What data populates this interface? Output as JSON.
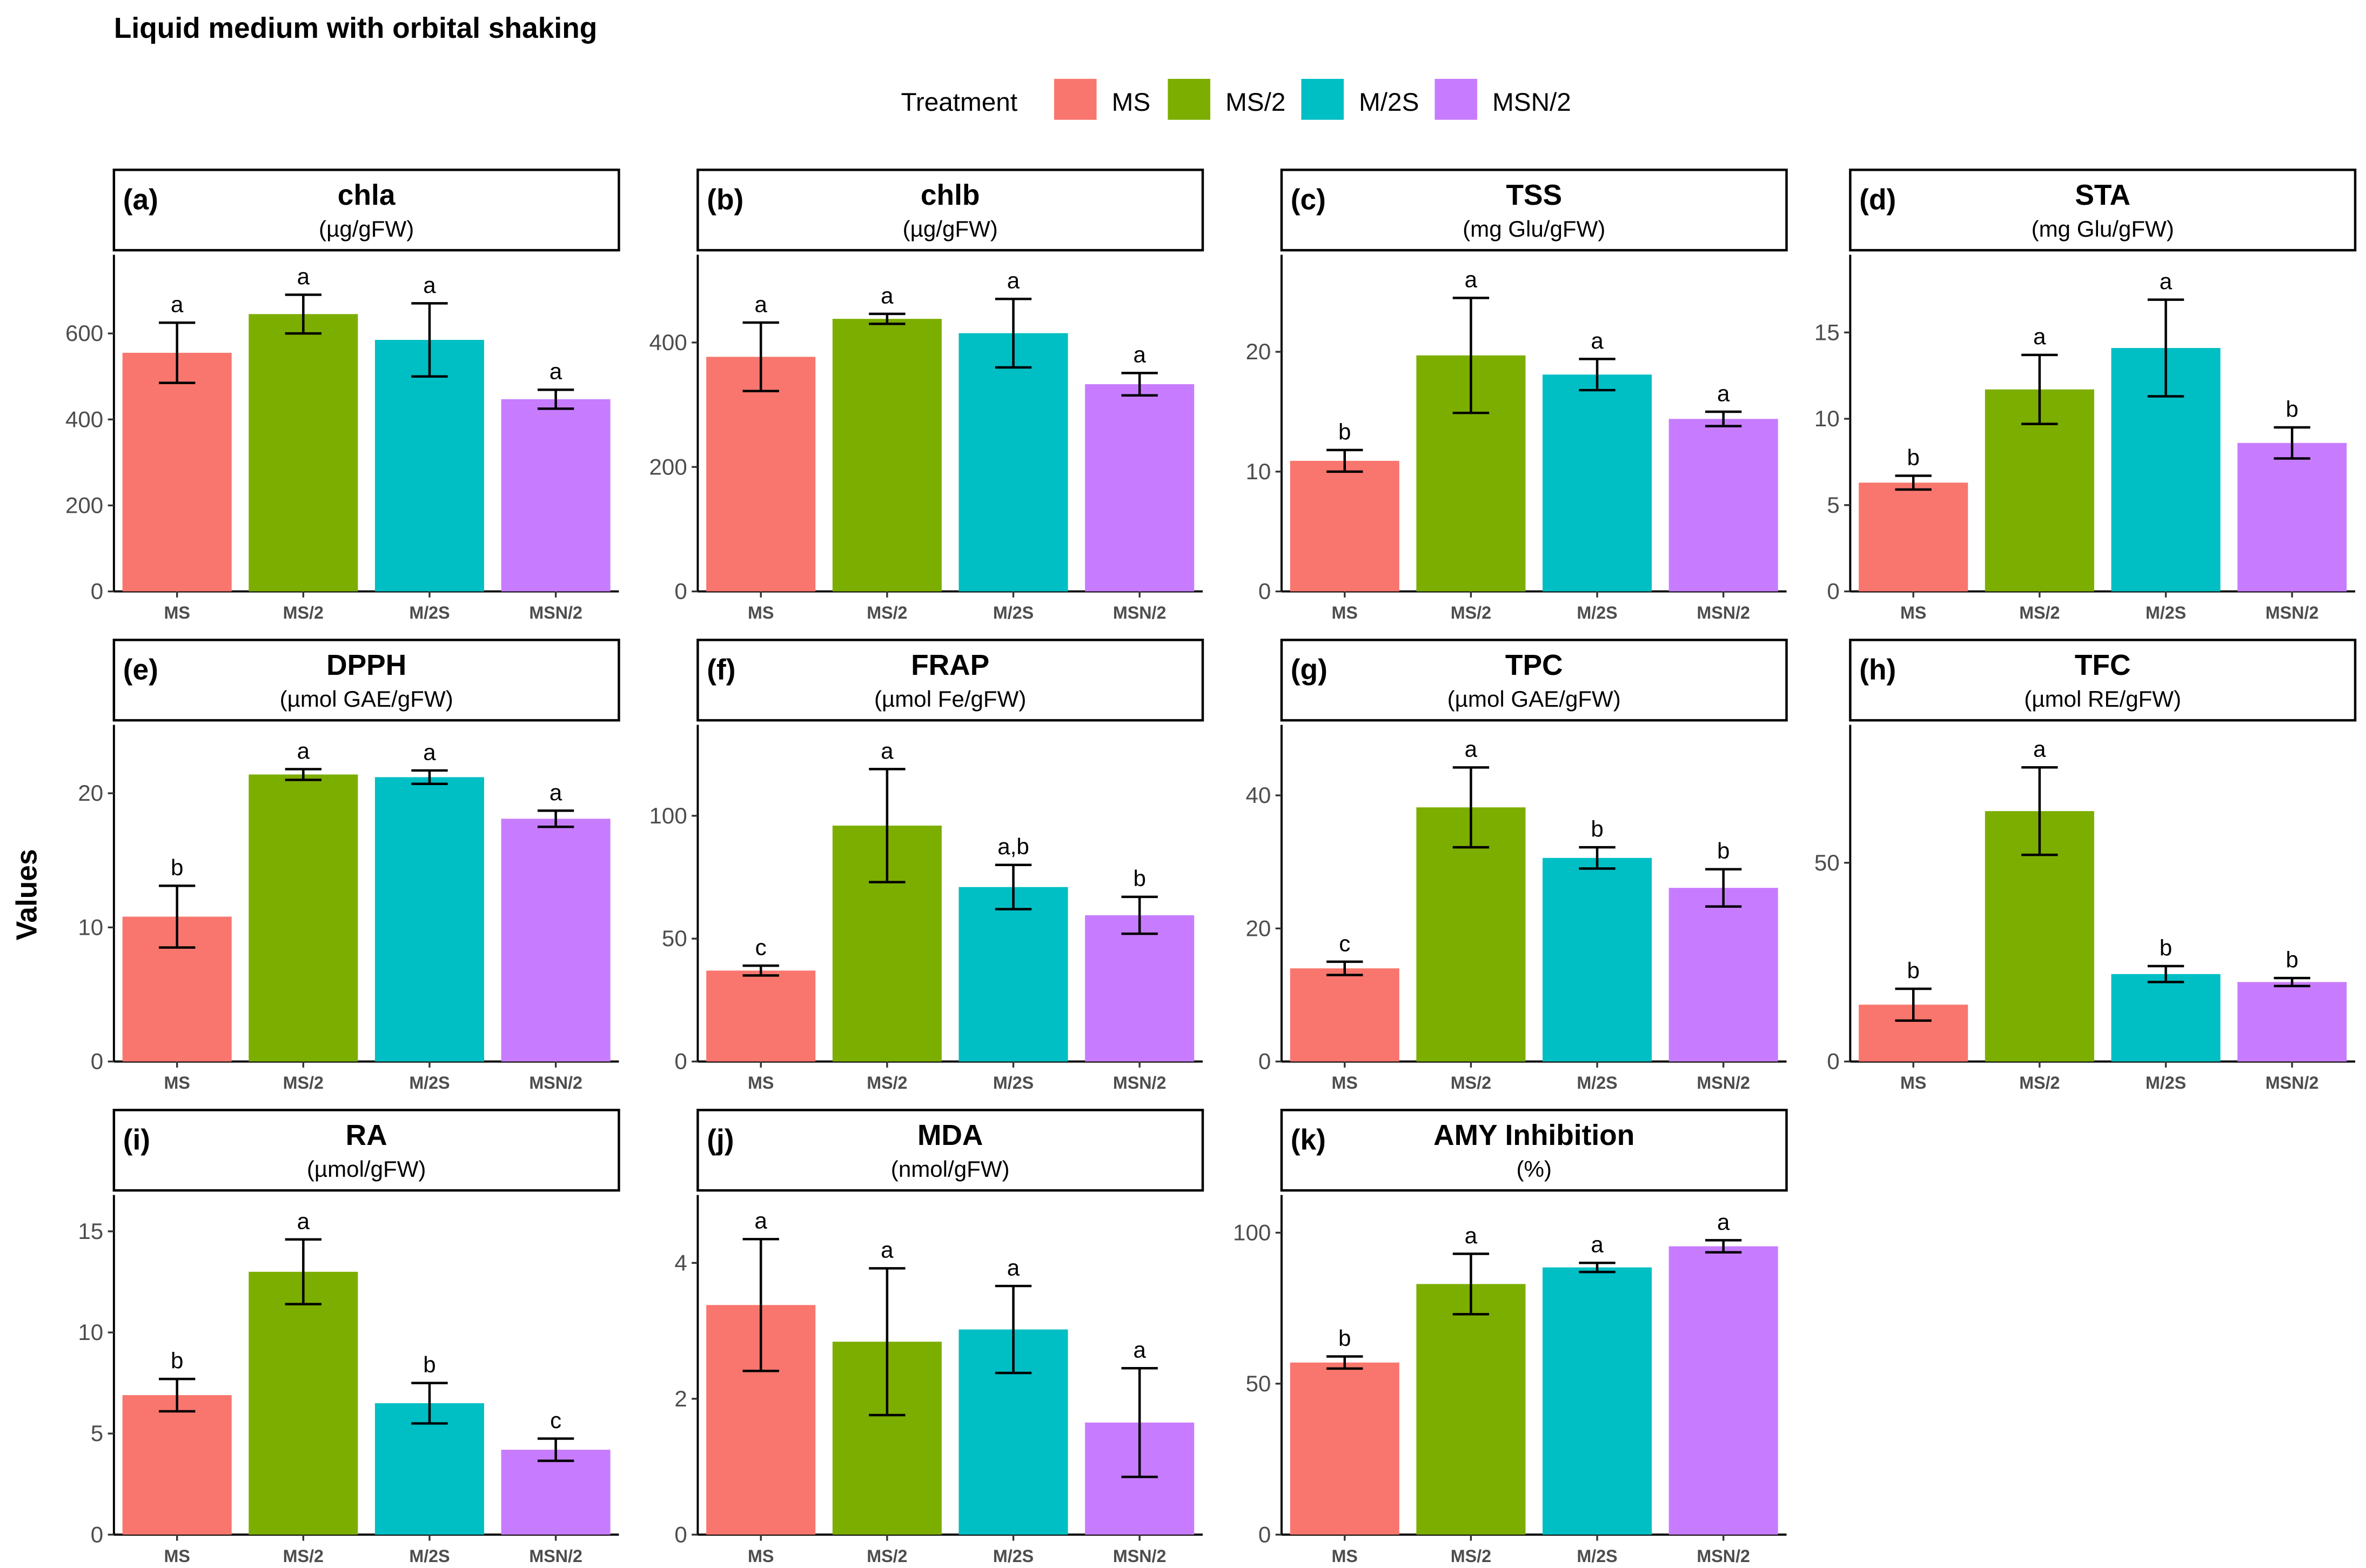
{
  "title": "Liquid medium with orbital shaking",
  "y_axis_label": "Values",
  "legend": {
    "title": "Treatment",
    "entries": [
      {
        "label": "MS",
        "color": "#F8766D"
      },
      {
        "label": "MS/2",
        "color": "#7CAE00"
      },
      {
        "label": "M/2S",
        "color": "#00BFC4"
      },
      {
        "label": "MSN/2",
        "color": "#C77CFF"
      }
    ]
  },
  "chart_data": [
    {
      "type": "bar",
      "panel": "(a)",
      "title": "chla",
      "unit": "(µg/gFW)",
      "categories": [
        "MS",
        "MS/2",
        "M/2S",
        "MSN/2"
      ],
      "values": [
        555,
        645,
        585,
        447
      ],
      "errors": [
        70,
        45,
        85,
        22
      ],
      "letters": [
        "a",
        "a",
        "a",
        "a"
      ],
      "ylim": [
        0,
        783
      ],
      "yticks": [
        0,
        200,
        400,
        600
      ]
    },
    {
      "type": "bar",
      "panel": "(b)",
      "title": "chlb",
      "unit": "(µg/gFW)",
      "categories": [
        "MS",
        "MS/2",
        "M/2S",
        "MSN/2"
      ],
      "values": [
        377,
        438,
        415,
        333
      ],
      "errors": [
        55,
        8,
        55,
        18
      ],
      "letters": [
        "a",
        "a",
        "a",
        "a"
      ],
      "ylim": [
        0,
        541
      ],
      "yticks": [
        0,
        200,
        400
      ]
    },
    {
      "type": "bar",
      "panel": "(c)",
      "title": "TSS",
      "unit": "(mg Glu/gFW)",
      "categories": [
        "MS",
        "MS/2",
        "M/2S",
        "MSN/2"
      ],
      "values": [
        10.9,
        19.7,
        18.1,
        14.4
      ],
      "errors": [
        0.9,
        4.8,
        1.3,
        0.6
      ],
      "letters": [
        "b",
        "a",
        "a",
        "a"
      ],
      "ylim": [
        0,
        28.1
      ],
      "yticks": [
        0,
        10,
        20
      ]
    },
    {
      "type": "bar",
      "panel": "(d)",
      "title": "STA",
      "unit": "(mg Glu/gFW)",
      "categories": [
        "MS",
        "MS/2",
        "M/2S",
        "MSN/2"
      ],
      "values": [
        6.3,
        11.7,
        14.1,
        8.6
      ],
      "errors": [
        0.4,
        2.0,
        2.8,
        0.9
      ],
      "letters": [
        "b",
        "a",
        "a",
        "b"
      ],
      "ylim": [
        0,
        19.5
      ],
      "yticks": [
        0,
        5,
        10,
        15
      ]
    },
    {
      "type": "bar",
      "panel": "(e)",
      "title": "DPPH",
      "unit": "(µmol GAE/gFW)",
      "categories": [
        "MS",
        "MS/2",
        "M/2S",
        "MSN/2"
      ],
      "values": [
        10.8,
        21.4,
        21.2,
        18.1
      ],
      "errors": [
        2.3,
        0.4,
        0.5,
        0.6
      ],
      "letters": [
        "b",
        "a",
        "a",
        "a"
      ],
      "ylim": [
        0,
        25.1
      ],
      "yticks": [
        0,
        10,
        20
      ]
    },
    {
      "type": "bar",
      "panel": "(f)",
      "title": "FRAP",
      "unit": "(µmol Fe/gFW)",
      "categories": [
        "MS",
        "MS/2",
        "M/2S",
        "MSN/2"
      ],
      "values": [
        37,
        96,
        71,
        59.5
      ],
      "errors": [
        2,
        23,
        9,
        7.5
      ],
      "letters": [
        "c",
        "a",
        "a,b",
        "b"
      ],
      "ylim": [
        0,
        137
      ],
      "yticks": [
        0,
        50,
        100
      ]
    },
    {
      "type": "bar",
      "panel": "(g)",
      "title": "TPC",
      "unit": "(µmol GAE/gFW)",
      "categories": [
        "MS",
        "MS/2",
        "M/2S",
        "MSN/2"
      ],
      "values": [
        14,
        38.2,
        30.6,
        26.1
      ],
      "errors": [
        1,
        6,
        1.6,
        2.8
      ],
      "letters": [
        "c",
        "a",
        "b",
        "b"
      ],
      "ylim": [
        0,
        50.6
      ],
      "yticks": [
        0,
        20,
        40
      ]
    },
    {
      "type": "bar",
      "panel": "(h)",
      "title": "TFC",
      "unit": "(µmol RE/gFW)",
      "categories": [
        "MS",
        "MS/2",
        "M/2S",
        "MSN/2"
      ],
      "values": [
        14.3,
        63,
        22,
        20
      ],
      "errors": [
        4,
        11,
        2,
        1
      ],
      "letters": [
        "b",
        "a",
        "b",
        "b"
      ],
      "ylim": [
        0,
        84.7
      ],
      "yticks": [
        0,
        50
      ]
    },
    {
      "type": "bar",
      "panel": "(i)",
      "title": "RA",
      "unit": "(µmol/gFW)",
      "categories": [
        "MS",
        "MS/2",
        "M/2S",
        "MSN/2"
      ],
      "values": [
        6.9,
        13,
        6.5,
        4.2
      ],
      "errors": [
        0.8,
        1.6,
        1,
        0.55
      ],
      "letters": [
        "b",
        "a",
        "b",
        "c"
      ],
      "ylim": [
        0,
        16.8
      ],
      "yticks": [
        0,
        5,
        10,
        15
      ]
    },
    {
      "type": "bar",
      "panel": "(j)",
      "title": "MDA",
      "unit": "(nmol/gFW)",
      "categories": [
        "MS",
        "MS/2",
        "M/2S",
        "MSN/2"
      ],
      "values": [
        3.38,
        2.84,
        3.02,
        1.65
      ],
      "errors": [
        0.97,
        1.08,
        0.64,
        0.8
      ],
      "letters": [
        "a",
        "a",
        "a",
        "a"
      ],
      "ylim": [
        0,
        5.0
      ],
      "yticks": [
        0,
        2,
        4
      ]
    },
    {
      "type": "bar",
      "panel": "(k)",
      "title": "AMY Inhibition",
      "unit": "(%)",
      "categories": [
        "MS",
        "MS/2",
        "M/2S",
        "MSN/2"
      ],
      "values": [
        57,
        83,
        88.5,
        95.5
      ],
      "errors": [
        2,
        10,
        1.5,
        2
      ],
      "letters": [
        "b",
        "a",
        "a",
        "a"
      ],
      "ylim": [
        0,
        112.5
      ],
      "yticks": [
        0,
        50,
        100
      ]
    }
  ]
}
